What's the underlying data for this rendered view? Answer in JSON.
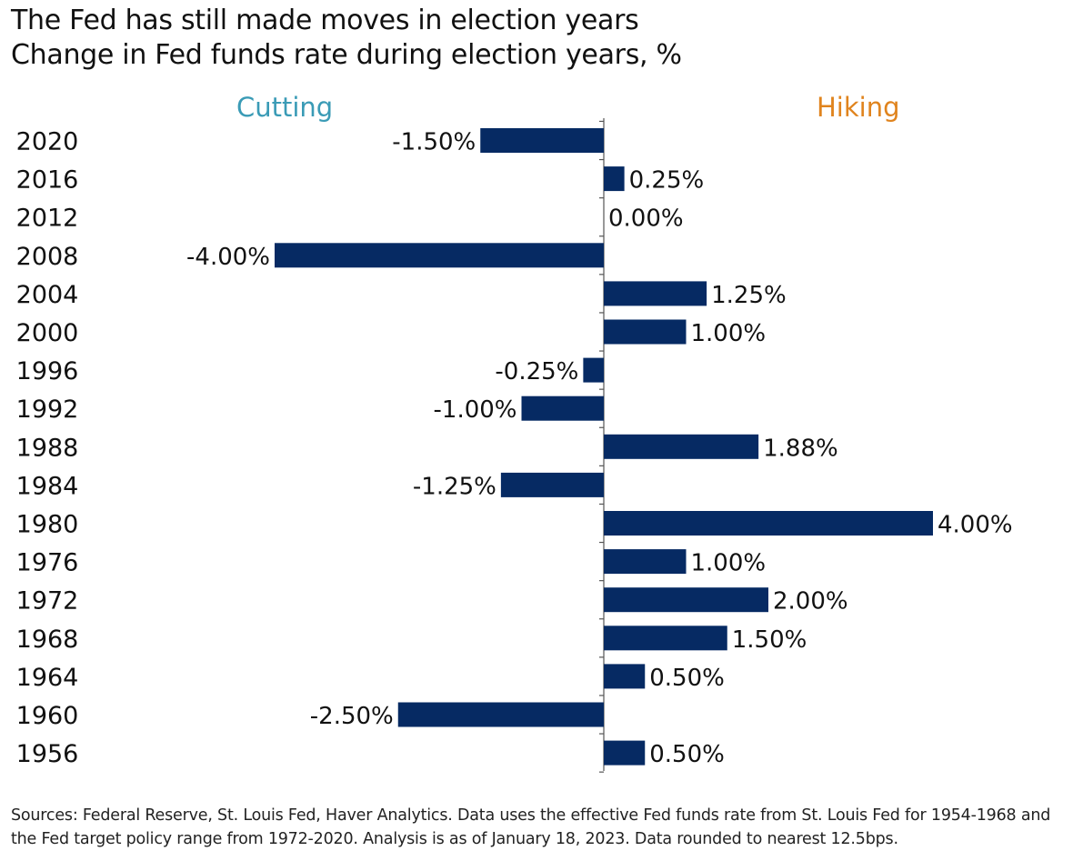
{
  "title": "The Fed has still made moves in election years",
  "subtitle": "Change in Fed funds rate during election years, %",
  "labels": {
    "cutting": "Cutting",
    "hiking": "Hiking"
  },
  "colors": {
    "bar": "#062a63",
    "cutting": "#3a9bb6",
    "hiking": "#e0841e",
    "axis": "#555555"
  },
  "chart_data": {
    "type": "bar",
    "orientation": "horizontal",
    "categories": [
      "2020",
      "2016",
      "2012",
      "2008",
      "2004",
      "2000",
      "1996",
      "1992",
      "1988",
      "1984",
      "1980",
      "1976",
      "1972",
      "1968",
      "1964",
      "1960",
      "1956"
    ],
    "values": [
      -1.5,
      0.25,
      0.0,
      -4.0,
      1.25,
      1.0,
      -0.25,
      -1.0,
      1.88,
      -1.25,
      4.0,
      1.0,
      2.0,
      1.5,
      0.5,
      -2.5,
      0.5
    ],
    "data_labels": [
      "-1.50%",
      "0.25%",
      "0.00%",
      "-4.00%",
      "1.25%",
      "1.00%",
      "-0.25%",
      "-1.00%",
      "1.88%",
      "-1.25%",
      "4.00%",
      "1.00%",
      "2.00%",
      "1.50%",
      "0.50%",
      "-2.50%",
      "0.50%"
    ],
    "xlim": [
      -4,
      4
    ],
    "grid": false,
    "legend": "none"
  },
  "source": "Sources: Federal Reserve, St. Louis Fed, Haver Analytics. Data uses the effective Fed funds rate from St. Louis Fed for 1954-1968 and the Fed target policy range from 1972-2020. Analysis is as of January 18, 2023. Data rounded to nearest 12.5bps."
}
